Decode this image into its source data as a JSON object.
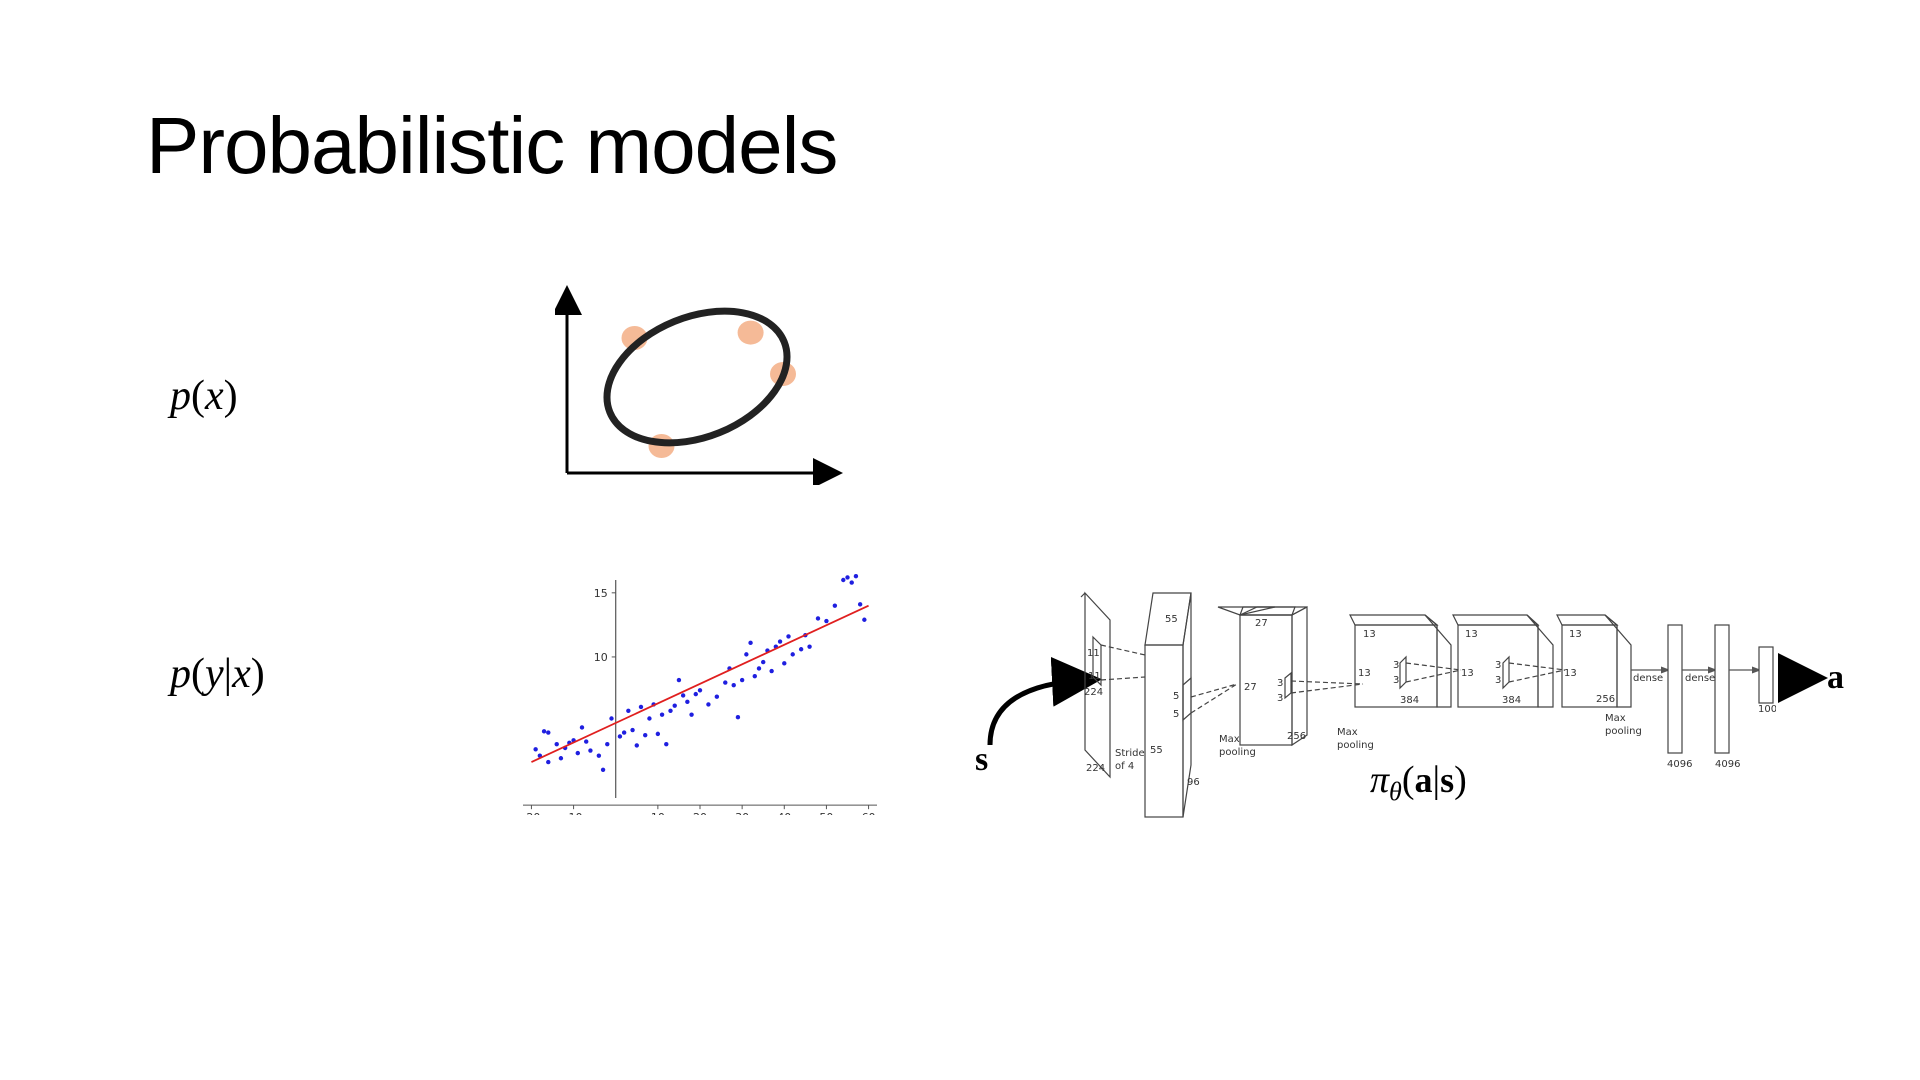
{
  "slide": {
    "title": "Probabilistic models"
  },
  "labels": {
    "px": {
      "p": "p",
      "open": "(",
      "x": "x",
      "close": ")"
    },
    "pyx": {
      "p": "p",
      "open": "(",
      "y": "y",
      "bar": "|",
      "x": "x",
      "close": ")"
    }
  },
  "density_figure": {
    "ellipse_color": "#222222",
    "point_color": "#f4b38c",
    "points": [
      [
        0.25,
        0.75
      ],
      [
        0.68,
        0.78
      ],
      [
        0.8,
        0.55
      ],
      [
        0.35,
        0.15
      ]
    ]
  },
  "chart_data": {
    "type": "scatter",
    "x_ticks": [
      "-20",
      "-10",
      "10",
      "20",
      "30",
      "40",
      "50",
      "60"
    ],
    "y_ticks": [
      "15",
      "10"
    ],
    "xlim": [
      -22,
      62
    ],
    "ylim": [
      -1,
      16
    ],
    "point_color": "#1f1fe0",
    "line_color": "#e01f1f",
    "fit_line": {
      "x": [
        -20,
        60
      ],
      "y": [
        1.8,
        14
      ]
    },
    "points": [
      [
        -19,
        2.8
      ],
      [
        -18,
        2.3
      ],
      [
        -17,
        4.2
      ],
      [
        -16,
        4.1
      ],
      [
        -16,
        1.8
      ],
      [
        -14,
        3.2
      ],
      [
        -13,
        2.1
      ],
      [
        -12,
        2.9
      ],
      [
        -11,
        3.3
      ],
      [
        -10,
        3.5
      ],
      [
        -9,
        2.5
      ],
      [
        -8,
        4.5
      ],
      [
        -7,
        3.4
      ],
      [
        -6,
        2.7
      ],
      [
        -4,
        2.3
      ],
      [
        -3,
        1.2
      ],
      [
        -2,
        3.2
      ],
      [
        -1,
        5.2
      ],
      [
        1,
        3.8
      ],
      [
        2,
        4.1
      ],
      [
        3,
        5.8
      ],
      [
        4,
        4.3
      ],
      [
        5,
        3.1
      ],
      [
        6,
        6.1
      ],
      [
        7,
        3.9
      ],
      [
        8,
        5.2
      ],
      [
        9,
        6.3
      ],
      [
        10,
        4.0
      ],
      [
        11,
        5.5
      ],
      [
        12,
        3.2
      ],
      [
        13,
        5.8
      ],
      [
        14,
        6.2
      ],
      [
        15,
        8.2
      ],
      [
        16,
        7.0
      ],
      [
        17,
        6.5
      ],
      [
        18,
        5.5
      ],
      [
        19,
        7.1
      ],
      [
        20,
        7.4
      ],
      [
        22,
        6.3
      ],
      [
        24,
        6.9
      ],
      [
        26,
        8.0
      ],
      [
        27,
        9.1
      ],
      [
        28,
        7.8
      ],
      [
        29,
        5.3
      ],
      [
        30,
        8.2
      ],
      [
        31,
        10.2
      ],
      [
        32,
        11.1
      ],
      [
        33,
        8.5
      ],
      [
        34,
        9.1
      ],
      [
        35,
        9.6
      ],
      [
        36,
        10.5
      ],
      [
        37,
        8.9
      ],
      [
        38,
        10.8
      ],
      [
        39,
        11.2
      ],
      [
        40,
        9.5
      ],
      [
        41,
        11.6
      ],
      [
        42,
        10.2
      ],
      [
        44,
        10.6
      ],
      [
        45,
        11.7
      ],
      [
        46,
        10.8
      ],
      [
        48,
        13.0
      ],
      [
        50,
        12.8
      ],
      [
        52,
        14.0
      ],
      [
        54,
        16.0
      ],
      [
        55,
        16.2
      ],
      [
        56,
        15.8
      ],
      [
        57,
        16.3
      ],
      [
        58,
        14.1
      ],
      [
        59,
        12.9
      ]
    ]
  },
  "cnn": {
    "input_arrow_label": "s",
    "output_arrow_label": "a",
    "policy_label": {
      "pi": "π",
      "theta": "θ",
      "open": "(",
      "a": "a",
      "bar": "|",
      "s": "s",
      "close": ")"
    },
    "layer_texts": {
      "in_11a": "11",
      "in_11b": "11",
      "in_224a": "224",
      "in_224b": "224",
      "stride": "Stride",
      "of4": "of 4",
      "l1_55a": "55",
      "l1_55b": "55",
      "l1_5a": "5",
      "l1_5b": "5",
      "l1_96": "96",
      "max1a": "Max",
      "max1b": "pooling",
      "l2_27a": "27",
      "l2_27b": "27",
      "l2_3a": "3",
      "l2_3b": "3",
      "l2_256": "256",
      "max2a": "Max",
      "max2b": "pooling",
      "l3_13a": "13",
      "l3_13b": "13",
      "l3_3a": "3",
      "l3_3b": "3",
      "l3_384": "384",
      "l4_13a": "13",
      "l4_13b": "13",
      "l4_3a": "3",
      "l4_3b": "3",
      "l4_384": "384",
      "l5_13a": "13",
      "l5_13b": "13",
      "l5_256": "256",
      "max3a": "Max",
      "max3b": "pooling",
      "dense1": "dense",
      "dense2": "dense",
      "fc1": "4096",
      "fc2": "4096",
      "fc3": "1000"
    }
  }
}
